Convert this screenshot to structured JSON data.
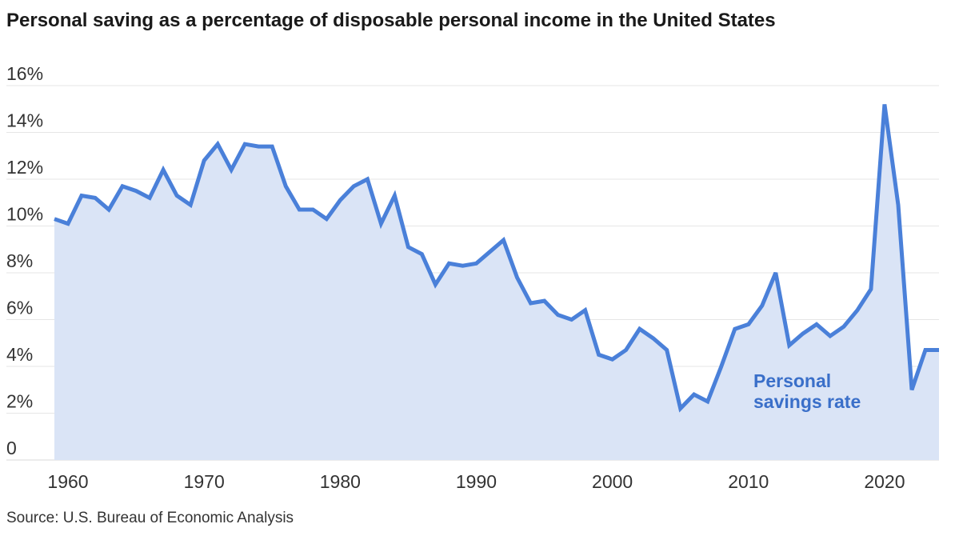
{
  "chart_data": {
    "type": "area",
    "title": "Personal saving as a percentage of disposable personal income in the United States",
    "source": "Source: U.S. Bureau of Economic Analysis",
    "series_label_line1": "Personal",
    "series_label_line2": "savings rate",
    "xlabel": "",
    "ylabel": "",
    "xlim": [
      1959,
      2024
    ],
    "ylim": [
      0,
      16
    ],
    "y_ticks": [
      0,
      2,
      4,
      6,
      8,
      10,
      12,
      14,
      16
    ],
    "y_tick_labels": [
      "0",
      "2%",
      "4%",
      "6%",
      "8%",
      "10%",
      "12%",
      "14%",
      "16%"
    ],
    "x_ticks": [
      1960,
      1970,
      1980,
      1990,
      2000,
      2010,
      2020
    ],
    "x_tick_labels": [
      "1960",
      "1970",
      "1980",
      "1990",
      "2000",
      "2010",
      "2020"
    ],
    "grid": true,
    "colors": {
      "line": "#4a80d9",
      "fill": "#dae4f6",
      "grid": "#e6e6e6",
      "label": "#3a6fc9"
    },
    "series": [
      {
        "name": "Personal savings rate",
        "x": [
          1959,
          1960,
          1961,
          1962,
          1963,
          1964,
          1965,
          1966,
          1967,
          1968,
          1969,
          1970,
          1971,
          1972,
          1973,
          1974,
          1975,
          1976,
          1977,
          1978,
          1979,
          1980,
          1981,
          1982,
          1983,
          1984,
          1985,
          1986,
          1987,
          1988,
          1989,
          1990,
          1991,
          1992,
          1993,
          1994,
          1995,
          1996,
          1997,
          1998,
          1999,
          2000,
          2001,
          2002,
          2003,
          2004,
          2005,
          2006,
          2007,
          2008,
          2009,
          2010,
          2011,
          2012,
          2013,
          2014,
          2015,
          2016,
          2017,
          2018,
          2019,
          2020,
          2021,
          2022,
          2023,
          2024
        ],
        "values": [
          10.3,
          10.1,
          11.3,
          11.2,
          10.7,
          11.7,
          11.5,
          11.2,
          12.4,
          11.3,
          10.9,
          12.8,
          13.5,
          12.4,
          13.5,
          13.4,
          13.4,
          11.7,
          10.7,
          10.7,
          10.3,
          11.1,
          11.7,
          12.0,
          10.1,
          11.3,
          9.1,
          8.8,
          7.5,
          8.4,
          8.3,
          8.4,
          8.9,
          9.4,
          7.8,
          6.7,
          6.8,
          6.2,
          6.0,
          6.4,
          4.5,
          4.3,
          4.7,
          5.6,
          5.2,
          4.7,
          2.2,
          2.8,
          2.5,
          4.0,
          5.6,
          5.8,
          6.6,
          8.0,
          4.9,
          5.4,
          5.8,
          5.3,
          5.7,
          6.4,
          7.3,
          15.2,
          10.9,
          3.0,
          4.7,
          4.7
        ]
      }
    ]
  }
}
